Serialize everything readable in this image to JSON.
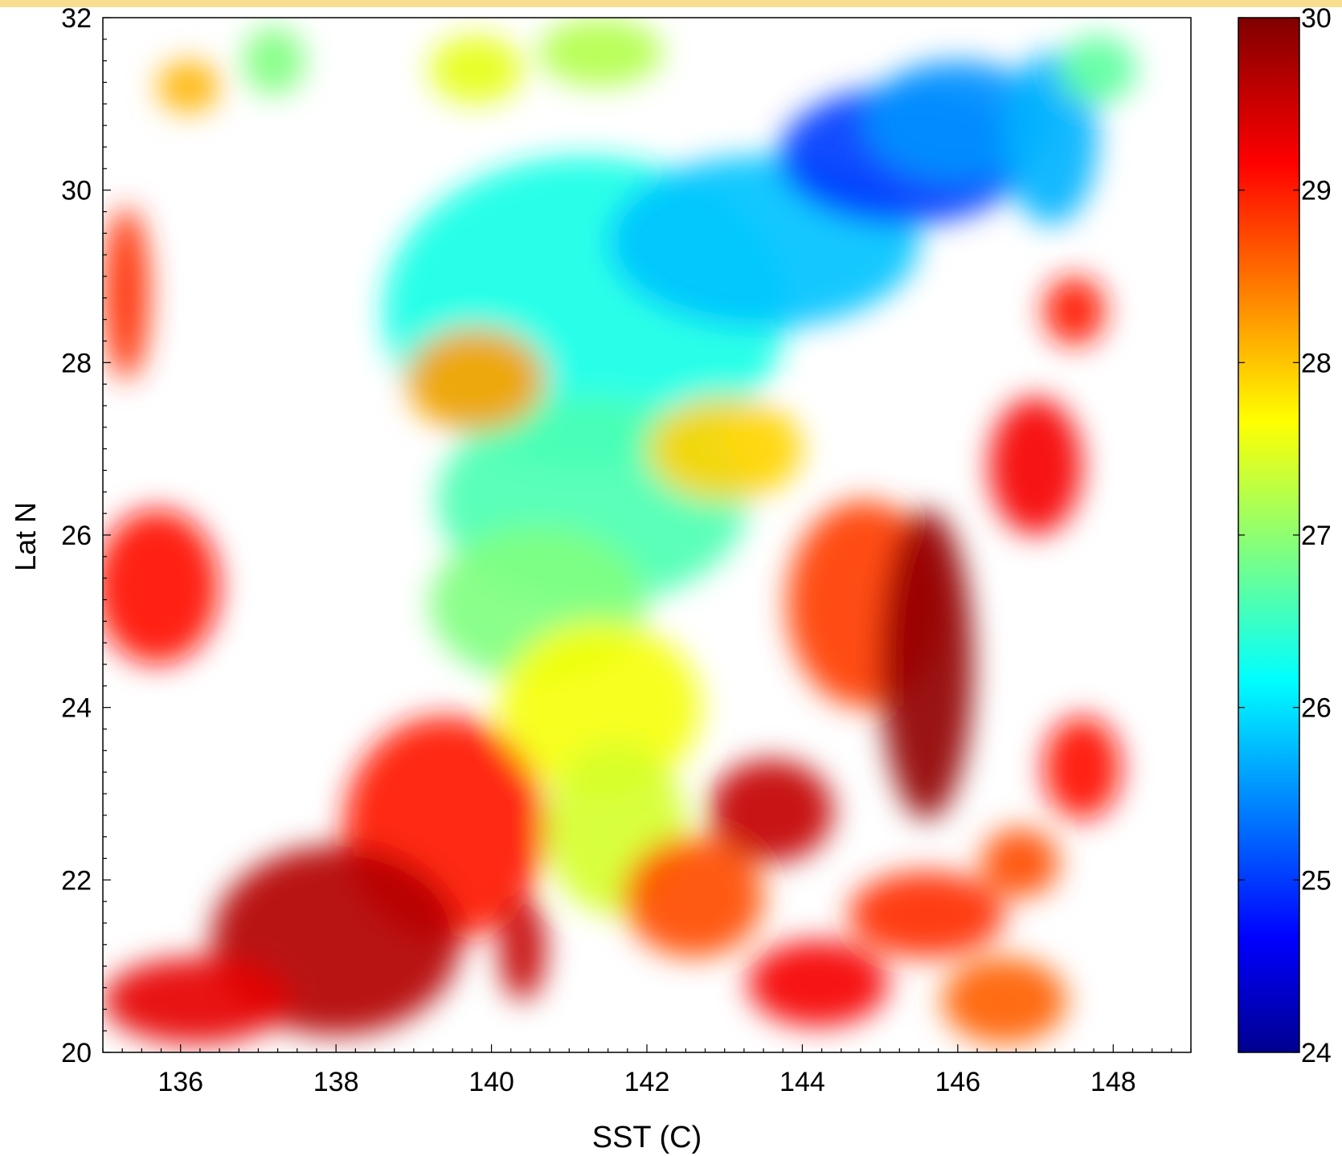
{
  "chart_data": {
    "type": "heatmap",
    "xlabel": "SST (C)",
    "ylabel": "Lat N",
    "xlim": [
      135,
      149
    ],
    "ylim": [
      20,
      32
    ],
    "x_ticks": [
      136,
      138,
      140,
      142,
      144,
      146,
      148
    ],
    "y_ticks": [
      20,
      22,
      24,
      26,
      28,
      30,
      32
    ],
    "colorbar": {
      "min": 24,
      "max": 30,
      "ticks": [
        24,
        25,
        26,
        27,
        28,
        29,
        30
      ],
      "colormap": "jet"
    },
    "regions": [
      {
        "lon": 141.2,
        "lat": 28.6,
        "rx": 2.6,
        "ry": 1.8,
        "value": 26.4
      },
      {
        "lon": 143.5,
        "lat": 29.4,
        "rx": 2.0,
        "ry": 1.0,
        "value": 25.9
      },
      {
        "lon": 145.3,
        "lat": 30.4,
        "rx": 1.6,
        "ry": 0.8,
        "value": 25.1
      },
      {
        "lon": 146.0,
        "lat": 30.8,
        "rx": 1.2,
        "ry": 0.7,
        "value": 25.6
      },
      {
        "lon": 147.2,
        "lat": 30.6,
        "rx": 0.6,
        "ry": 1.0,
        "value": 25.8
      },
      {
        "lon": 147.8,
        "lat": 31.4,
        "rx": 0.5,
        "ry": 0.4,
        "value": 26.8
      },
      {
        "lon": 141.3,
        "lat": 26.4,
        "rx": 2.0,
        "ry": 1.2,
        "value": 26.7
      },
      {
        "lon": 140.6,
        "lat": 25.2,
        "rx": 1.4,
        "ry": 0.9,
        "value": 27.0
      },
      {
        "lon": 141.4,
        "lat": 24.0,
        "rx": 1.3,
        "ry": 1.0,
        "value": 27.7
      },
      {
        "lon": 141.6,
        "lat": 22.6,
        "rx": 0.9,
        "ry": 1.0,
        "value": 27.5
      },
      {
        "lon": 139.8,
        "lat": 27.8,
        "rx": 0.9,
        "ry": 0.6,
        "value": 28.3
      },
      {
        "lon": 143.0,
        "lat": 27.0,
        "rx": 1.0,
        "ry": 0.6,
        "value": 28.0
      },
      {
        "lon": 144.8,
        "lat": 25.2,
        "rx": 1.0,
        "ry": 1.2,
        "value": 28.9
      },
      {
        "lon": 145.6,
        "lat": 24.5,
        "rx": 0.6,
        "ry": 1.8,
        "value": 29.9
      },
      {
        "lon": 143.6,
        "lat": 22.8,
        "rx": 0.8,
        "ry": 0.6,
        "value": 29.6
      },
      {
        "lon": 142.6,
        "lat": 21.8,
        "rx": 0.9,
        "ry": 0.7,
        "value": 28.8
      },
      {
        "lon": 139.4,
        "lat": 22.6,
        "rx": 1.3,
        "ry": 1.3,
        "value": 29.1
      },
      {
        "lon": 138.0,
        "lat": 21.3,
        "rx": 1.6,
        "ry": 1.1,
        "value": 29.7
      },
      {
        "lon": 140.4,
        "lat": 21.2,
        "rx": 0.3,
        "ry": 0.6,
        "value": 29.6
      },
      {
        "lon": 136.2,
        "lat": 20.6,
        "rx": 1.2,
        "ry": 0.5,
        "value": 29.4
      },
      {
        "lon": 135.7,
        "lat": 25.4,
        "rx": 0.8,
        "ry": 0.9,
        "value": 29.2
      },
      {
        "lon": 135.3,
        "lat": 28.8,
        "rx": 0.3,
        "ry": 1.0,
        "value": 29.0
      },
      {
        "lon": 136.1,
        "lat": 31.2,
        "rx": 0.4,
        "ry": 0.3,
        "value": 28.2
      },
      {
        "lon": 137.2,
        "lat": 31.5,
        "rx": 0.4,
        "ry": 0.4,
        "value": 27.0
      },
      {
        "lon": 139.8,
        "lat": 31.4,
        "rx": 0.6,
        "ry": 0.4,
        "value": 27.6
      },
      {
        "lon": 141.4,
        "lat": 31.6,
        "rx": 0.8,
        "ry": 0.4,
        "value": 27.3
      },
      {
        "lon": 147.5,
        "lat": 28.6,
        "rx": 0.4,
        "ry": 0.4,
        "value": 29.1
      },
      {
        "lon": 147.0,
        "lat": 26.8,
        "rx": 0.6,
        "ry": 0.8,
        "value": 29.3
      },
      {
        "lon": 147.6,
        "lat": 23.3,
        "rx": 0.5,
        "ry": 0.6,
        "value": 29.2
      },
      {
        "lon": 146.8,
        "lat": 22.2,
        "rx": 0.5,
        "ry": 0.4,
        "value": 28.8
      },
      {
        "lon": 145.6,
        "lat": 21.6,
        "rx": 1.0,
        "ry": 0.5,
        "value": 29.0
      },
      {
        "lon": 146.6,
        "lat": 20.6,
        "rx": 0.8,
        "ry": 0.5,
        "value": 28.7
      },
      {
        "lon": 144.2,
        "lat": 20.8,
        "rx": 0.9,
        "ry": 0.5,
        "value": 29.3
      }
    ]
  }
}
